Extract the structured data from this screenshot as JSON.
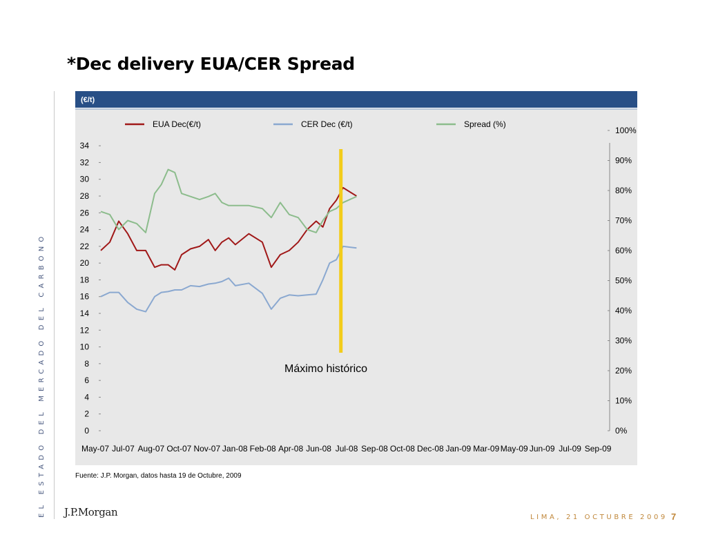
{
  "slide": {
    "title": "*Dec delivery EUA/CER Spread",
    "side_text": "EL ESTADO DEL MERCADO DEL CARBONO",
    "footer_text": "LIMA, 21 OCTUBRE 2009",
    "page_number": "7",
    "logo_text": "J.P.Morgan",
    "source_note": "Fuente: J.P. Morgan, datos hasta 19 de Octubre, 2009"
  },
  "colors": {
    "header_bar": "#284f86",
    "plot_bg": "#e8e8e8",
    "eua": "#a01818",
    "cer": "#8aa8d0",
    "spread": "#8cbc8c",
    "marker": "#f3cc1a",
    "footer": "#c0873a"
  },
  "chart_data": {
    "type": "line",
    "header_label": "(€/t)",
    "annotation": "Máximo histórico",
    "x_tick_labels": [
      "May-07",
      "Jul-07",
      "Aug-07",
      "Oct-07",
      "Nov-07",
      "Jan-08",
      "Feb-08",
      "Apr-08",
      "Jun-08",
      "Jul-08",
      "Sep-08",
      "Oct-08",
      "Dec-08",
      "Jan-09",
      "Mar-09",
      "May-09",
      "Jun-09",
      "Jul-09",
      "Sep-09"
    ],
    "y_left": {
      "ticks": [
        0,
        2,
        4,
        6,
        8,
        10,
        12,
        14,
        16,
        18,
        20,
        22,
        24,
        26,
        28,
        30,
        32,
        34
      ],
      "range": [
        0,
        35
      ]
    },
    "y_right": {
      "ticks": [
        "0%",
        "10%",
        "20%",
        "30%",
        "40%",
        "50%",
        "60%",
        "70%",
        "80%",
        "90%",
        "100%"
      ],
      "range": [
        0,
        1
      ]
    },
    "marker_x": "Jul-08",
    "x_range": [
      "May-07",
      "Sep-09"
    ],
    "series": [
      {
        "name": "EUA Dec(€/t)",
        "axis": "left",
        "color": "#a01818",
        "points": [
          [
            "May-07",
            21.5
          ],
          [
            "May-07",
            22.5
          ],
          [
            "May-07",
            25.0
          ],
          [
            "Jul-07",
            23.5
          ],
          [
            "Jul-07",
            21.5
          ],
          [
            "Jul-07",
            21.5
          ],
          [
            "Aug-07",
            19.5
          ],
          [
            "Aug-07",
            19.8
          ],
          [
            "Aug-07",
            19.8
          ],
          [
            "Aug-07",
            19.2
          ],
          [
            "Oct-07",
            21.0
          ],
          [
            "Oct-07",
            21.7
          ],
          [
            "Oct-07",
            22.0
          ],
          [
            "Nov-07",
            22.8
          ],
          [
            "Nov-07",
            21.5
          ],
          [
            "Nov-07",
            22.5
          ],
          [
            "Nov-07",
            23.0
          ],
          [
            "Jan-08",
            22.2
          ],
          [
            "Jan-08",
            23.5
          ],
          [
            "Feb-08",
            22.5
          ],
          [
            "Feb-08",
            19.5
          ],
          [
            "Feb-08",
            21.0
          ],
          [
            "Apr-08",
            21.5
          ],
          [
            "Apr-08",
            22.5
          ],
          [
            "Apr-08",
            24.0
          ],
          [
            "Jun-08",
            25.0
          ],
          [
            "Jun-08",
            24.3
          ],
          [
            "Jun-08",
            26.5
          ],
          [
            "Jun-08",
            27.5
          ],
          [
            "Jul-08",
            29.0
          ],
          [
            "Jul-08",
            28.0
          ]
        ]
      },
      {
        "name": "CER Dec (€/t)",
        "axis": "left",
        "color": "#8aa8d0",
        "points": [
          [
            "May-07",
            16.0
          ],
          [
            "May-07",
            16.5
          ],
          [
            "May-07",
            16.5
          ],
          [
            "Jul-07",
            15.3
          ],
          [
            "Jul-07",
            14.5
          ],
          [
            "Jul-07",
            14.2
          ],
          [
            "Aug-07",
            16.0
          ],
          [
            "Aug-07",
            16.5
          ],
          [
            "Aug-07",
            16.6
          ],
          [
            "Aug-07",
            16.8
          ],
          [
            "Oct-07",
            16.8
          ],
          [
            "Oct-07",
            17.3
          ],
          [
            "Oct-07",
            17.2
          ],
          [
            "Nov-07",
            17.5
          ],
          [
            "Nov-07",
            17.6
          ],
          [
            "Nov-07",
            17.8
          ],
          [
            "Nov-07",
            18.2
          ],
          [
            "Jan-08",
            17.3
          ],
          [
            "Jan-08",
            17.6
          ],
          [
            "Feb-08",
            16.4
          ],
          [
            "Feb-08",
            14.5
          ],
          [
            "Feb-08",
            15.8
          ],
          [
            "Apr-08",
            16.2
          ],
          [
            "Apr-08",
            16.1
          ],
          [
            "Apr-08",
            16.2
          ],
          [
            "Jun-08",
            16.3
          ],
          [
            "Jun-08",
            18.0
          ],
          [
            "Jun-08",
            20.0
          ],
          [
            "Jun-08",
            20.4
          ],
          [
            "Jul-08",
            22.0
          ],
          [
            "Jul-08",
            21.8
          ]
        ]
      },
      {
        "name": "Spread (%)",
        "axis": "right",
        "color": "#8cbc8c",
        "points": [
          [
            "May-07",
            0.73
          ],
          [
            "May-07",
            0.72
          ],
          [
            "May-07",
            0.67
          ],
          [
            "Jul-07",
            0.7
          ],
          [
            "Jul-07",
            0.69
          ],
          [
            "Jul-07",
            0.66
          ],
          [
            "Aug-07",
            0.79
          ],
          [
            "Aug-07",
            0.82
          ],
          [
            "Aug-07",
            0.87
          ],
          [
            "Aug-07",
            0.86
          ],
          [
            "Oct-07",
            0.79
          ],
          [
            "Oct-07",
            0.78
          ],
          [
            "Oct-07",
            0.77
          ],
          [
            "Nov-07",
            0.78
          ],
          [
            "Nov-07",
            0.79
          ],
          [
            "Nov-07",
            0.76
          ],
          [
            "Nov-07",
            0.75
          ],
          [
            "Jan-08",
            0.75
          ],
          [
            "Jan-08",
            0.75
          ],
          [
            "Feb-08",
            0.74
          ],
          [
            "Feb-08",
            0.71
          ],
          [
            "Feb-08",
            0.76
          ],
          [
            "Apr-08",
            0.72
          ],
          [
            "Apr-08",
            0.71
          ],
          [
            "Apr-08",
            0.67
          ],
          [
            "Jun-08",
            0.66
          ],
          [
            "Jun-08",
            0.7
          ],
          [
            "Jun-08",
            0.73
          ],
          [
            "Jun-08",
            0.74
          ],
          [
            "Jul-08",
            0.76
          ],
          [
            "Jul-08",
            0.78
          ]
        ]
      }
    ]
  }
}
